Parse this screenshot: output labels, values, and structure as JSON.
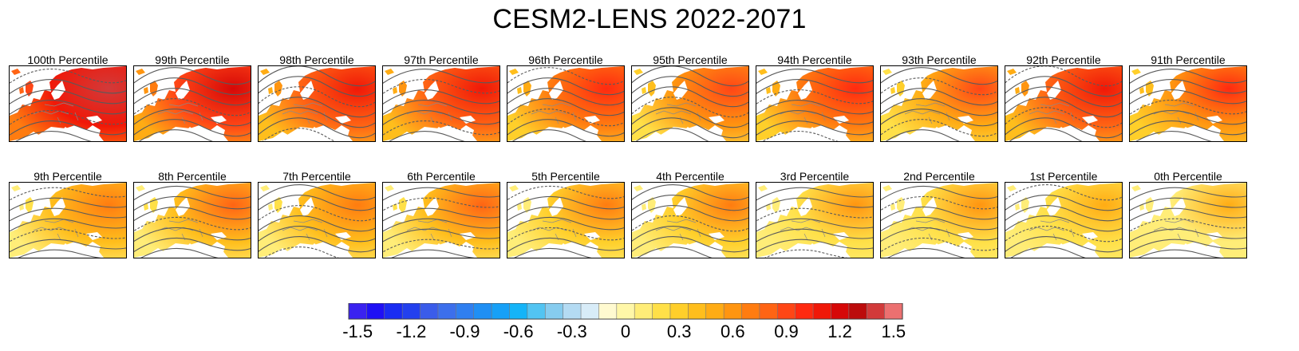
{
  "title": "CESM2-LENS 2022-2071",
  "panels_top": [
    {
      "label": "100th Percentile",
      "anomaly": 1.05
    },
    {
      "label": "99th Percentile",
      "anomaly": 0.85
    },
    {
      "label": "98th Percentile",
      "anomaly": 0.75
    },
    {
      "label": "97th Percentile",
      "anomaly": 0.75
    },
    {
      "label": "96th Percentile",
      "anomaly": 0.65
    },
    {
      "label": "95th Percentile",
      "anomaly": 0.55
    },
    {
      "label": "94th Percentile",
      "anomaly": 0.65
    },
    {
      "label": "93th Percentile",
      "anomaly": 0.5
    },
    {
      "label": "92th Percentile",
      "anomaly": 0.75
    },
    {
      "label": "91th Percentile",
      "anomaly": 0.6
    }
  ],
  "panels_bottom": [
    {
      "label": "9th Percentile",
      "anomaly": 0.35
    },
    {
      "label": "8th Percentile",
      "anomaly": 0.4
    },
    {
      "label": "7th Percentile",
      "anomaly": 0.35
    },
    {
      "label": "6th Percentile",
      "anomaly": 0.4
    },
    {
      "label": "5th Percentile",
      "anomaly": 0.3
    },
    {
      "label": "4th Percentile",
      "anomaly": 0.3
    },
    {
      "label": "3rd Percentile",
      "anomaly": 0.2
    },
    {
      "label": "2nd Percentile",
      "anomaly": 0.2
    },
    {
      "label": "1st Percentile",
      "anomaly": 0.15
    },
    {
      "label": "0th Percentile",
      "anomaly": 0.1
    }
  ],
  "chart_data": {
    "type": "heatmap",
    "title": "CESM2-LENS 2022-2071",
    "colorbar": {
      "min": -1.5,
      "max": 1.5,
      "step": 0.1,
      "tick_labels": [
        "-1.5",
        "-1.2",
        "-0.9",
        "-0.6",
        "-0.3",
        "0",
        "0.3",
        "0.6",
        "0.9",
        "1.2",
        "1.5"
      ],
      "tick_values": [
        -1.5,
        -1.2,
        -0.9,
        -0.6,
        -0.3,
        0,
        0.3,
        0.6,
        0.9,
        1.2,
        1.5
      ],
      "colors": [
        "#3a22f0",
        "#1f10f5",
        "#1a2cf2",
        "#2340ee",
        "#3a5cea",
        "#3c6fec",
        "#2f7ff0",
        "#1f8ff4",
        "#16a0f7",
        "#14b4f8",
        "#52c4f2",
        "#86ccef",
        "#b4dbf3",
        "#d8ecf8",
        "#fffad0",
        "#fff7a8",
        "#ffed78",
        "#ffe048",
        "#ffcf2a",
        "#ffbe1c",
        "#ffac14",
        "#ff9510",
        "#ff7c10",
        "#ff6414",
        "#ff4616",
        "#ff2a10",
        "#f01808",
        "#d60808",
        "#bc0c0c",
        "#d23a3a",
        "#ec7070"
      ]
    },
    "fields": "surface anomaly (shaded) with pressure contours",
    "panels": [
      "100th Percentile",
      "99th Percentile",
      "98th Percentile",
      "97th Percentile",
      "96th Percentile",
      "95th Percentile",
      "94th Percentile",
      "93th Percentile",
      "92th Percentile",
      "91th Percentile",
      "9th Percentile",
      "8th Percentile",
      "7th Percentile",
      "6th Percentile",
      "5th Percentile",
      "4th Percentile",
      "3rd Percentile",
      "2nd Percentile",
      "1st Percentile",
      "0th Percentile"
    ]
  }
}
